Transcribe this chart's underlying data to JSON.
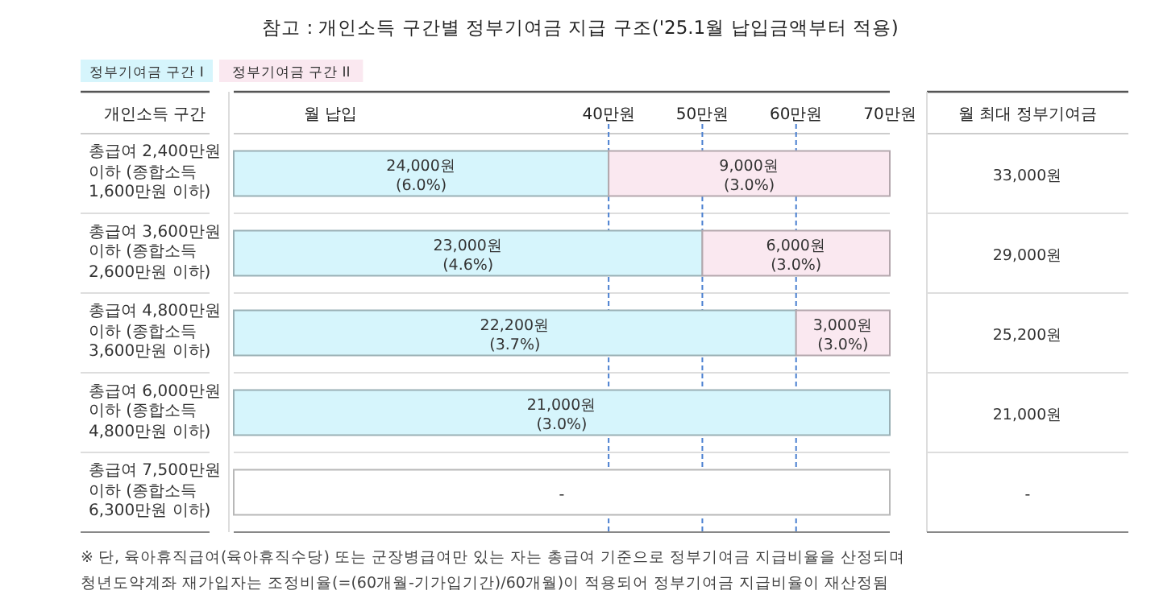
{
  "chart_data": {
    "type": "bar",
    "orientation": "horizontal",
    "stacked": true,
    "title": "참고 : 개인소득 구간별 정부기여금 지급 구조('25.1월 납입금액부터 적용)",
    "xlabel": "월 납입",
    "ylabel": "개인소득 구간",
    "y2label": "월 최대 정부기여금",
    "categories": [
      "총급여 2,400만원 이하 (종합소득 1,600만원 이하)",
      "총급여 3,600만원 이하 (종합소득 2,600만원 이하)",
      "총급여 4,800만원 이하 (종합소득 3,600만원 이하)",
      "총급여 6,000만원 이하 (종합소득 4,800만원 이하)",
      "총급여 7,500만원 이하 (종합소득 6,300만원 이하)"
    ],
    "series": [
      {
        "name": "정부기여금 구간 I",
        "color": "#d6f5fc",
        "values": [
          40,
          50,
          60,
          70,
          null
        ]
      },
      {
        "name": "정부기여금 구간 II",
        "color": "#fae8f0",
        "values": [
          30,
          20,
          10,
          null,
          null
        ]
      },
      {
        "color": "#ffffff",
        "values": [
          null,
          null,
          null,
          null,
          70
        ]
      }
    ],
    "xlim": [
      0,
      70
    ],
    "xticks": [
      {
        "value": 40,
        "label": "40만원"
      },
      {
        "value": 50,
        "label": "50만원"
      },
      {
        "value": 60,
        "label": "60만원"
      },
      {
        "value": 70,
        "label": "70만원"
      }
    ],
    "ref_lines": [
      {
        "axis": "x",
        "value": 40,
        "line_style": "dashed",
        "color": "#4a7fd0"
      },
      {
        "axis": "x",
        "value": 50,
        "line_style": "dashed",
        "color": "#4a7fd0"
      },
      {
        "axis": "x",
        "value": 60,
        "line_style": "dashed",
        "color": "#4a7fd0"
      }
    ],
    "legend": "top left",
    "annotations": [
      "24,000원\n(6.0%)",
      "9,000원\n(3.0%)",
      "23,000원\n(4.6%)",
      "6,000원\n(3.0%)",
      "22,200원\n(3.7%)",
      "3,000원\n(3.0%)",
      "21,000원\n(3.0%)",
      "-",
      "33,000원",
      "29,000원",
      "25,200원",
      "21,000원",
      "-",
      "※ 단, 육아휴직급여(육아휴직수당) 또는 군장병급여만 있는 자는 총급여 기준으로 정부기여금 지급비율을 산정되며",
      "청년도약계좌 재가입자는 조정비율(=(60개월-기가입기간)/60개월)이 적용되어 정부기여금 지급비율이 재산정됨"
    ]
  }
}
